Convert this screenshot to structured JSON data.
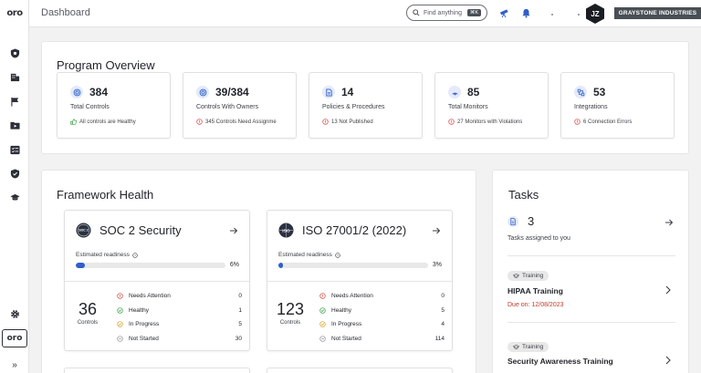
{
  "header": {
    "title": "Dashboard",
    "search_placeholder": "Find anything",
    "search_shortcut": "⌘K",
    "avatar_initials": "JZ",
    "org_name": "GRAYSTONE INDUSTRIES"
  },
  "sidebar": {
    "logo": "oro",
    "bottom_logo": "oro",
    "expand": "»"
  },
  "program_overview": {
    "title": "Program Overview",
    "cards": [
      {
        "value": "384",
        "label": "Total Controls",
        "status": "All controls are Healthy",
        "status_kind": "ok",
        "icon": "target-icon"
      },
      {
        "value": "39/384",
        "label": "Controls With Owners",
        "status": "345 Controls Need Assignme",
        "status_kind": "warn",
        "icon": "target-icon"
      },
      {
        "value": "14",
        "label": "Policies & Procedures",
        "status": "13 Not Published",
        "status_kind": "warn",
        "icon": "document-icon"
      },
      {
        "value": "85",
        "label": "Total Monitors",
        "status": "27 Monitors with Violations",
        "status_kind": "warn",
        "icon": "radar-icon"
      },
      {
        "value": "53",
        "label": "Integrations",
        "status": "6 Connection Errors",
        "status_kind": "warn",
        "icon": "integration-icon"
      }
    ]
  },
  "framework_health": {
    "title": "Framework Health",
    "readiness_label": "Estimated readiness",
    "controls_label": "Controls",
    "frameworks": [
      {
        "name": "SOC 2 Security",
        "badge": "SOC 2",
        "readiness_pct": 6,
        "readiness_text": "6%",
        "controls": "36",
        "rows": [
          {
            "label": "Needs Attention",
            "value": "0"
          },
          {
            "label": "Healthy",
            "value": "1"
          },
          {
            "label": "In Progress",
            "value": "5"
          },
          {
            "label": "Not Started",
            "value": "30"
          }
        ]
      },
      {
        "name": "ISO 27001/2 (2022)",
        "badge": "ISO",
        "readiness_pct": 3,
        "readiness_text": "3%",
        "controls": "123",
        "rows": [
          {
            "label": "Needs Attention",
            "value": "0"
          },
          {
            "label": "Healthy",
            "value": "5"
          },
          {
            "label": "In Progress",
            "value": "4"
          },
          {
            "label": "Not Started",
            "value": "114"
          }
        ]
      }
    ]
  },
  "tasks": {
    "title": "Tasks",
    "count": "3",
    "subtitle": "Tasks assigned to you",
    "items": [
      {
        "tag": "Training",
        "name": "HIPAA Training",
        "due": "Due on: 12/08/2023"
      },
      {
        "tag": "Training",
        "name": "Security Awareness Training",
        "due": ""
      }
    ]
  },
  "colors": {
    "accent": "#2f5fc9",
    "ok": "#2e9e3e",
    "warn": "#d6403a",
    "progress": "#d69a1a",
    "due": "#c0392b"
  }
}
